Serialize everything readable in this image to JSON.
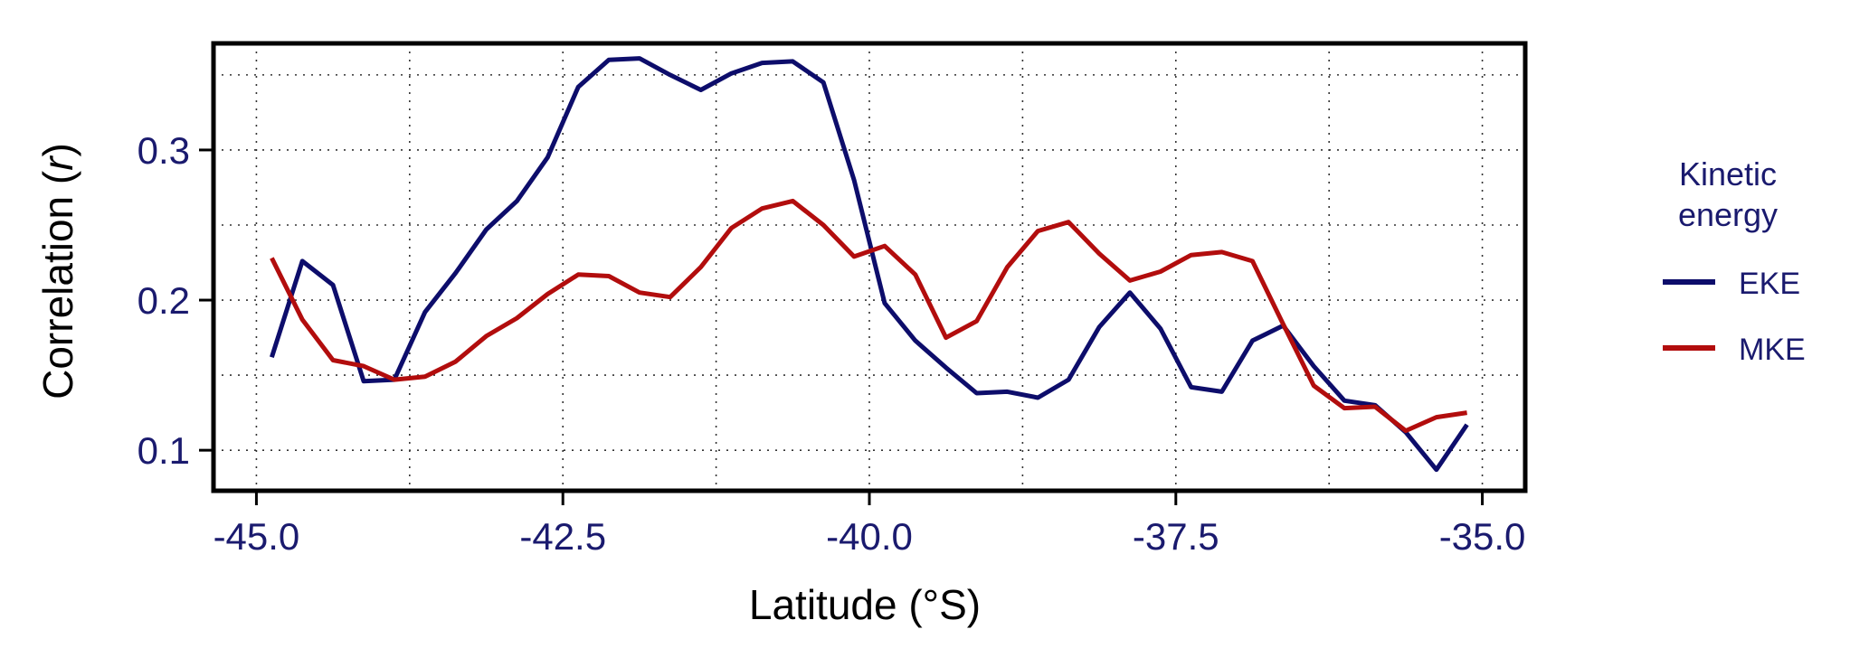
{
  "chart_data": {
    "type": "line",
    "xlabel": "Latitude (°S)",
    "ylabel_main": "Correlation (",
    "ylabel_italic": "r",
    "ylabel_close": ")",
    "xlim": [
      -45.35,
      -34.65
    ],
    "ylim": [
      0.073,
      0.371
    ],
    "x_ticks": [
      -45.0,
      -42.5,
      -40.0,
      -37.5,
      -35.0
    ],
    "x_tick_labels": [
      "-45.0",
      "-42.5",
      "-40.0",
      "-37.5",
      "-35.0"
    ],
    "x_minor_grid": [
      -43.75,
      -41.25,
      -38.75,
      -36.25
    ],
    "y_ticks": [
      0.1,
      0.2,
      0.3
    ],
    "y_tick_labels": [
      "0.1",
      "0.2",
      "0.3"
    ],
    "y_minor_grid": [
      0.15,
      0.25,
      0.35
    ],
    "grid": true,
    "legend_position": "right",
    "legend_title_lines": [
      "Kinetic",
      "energy"
    ],
    "series": [
      {
        "name": "EKE",
        "color": "#0d0d6b",
        "x": [
          -44.875,
          -44.625,
          -44.375,
          -44.125,
          -43.875,
          -43.625,
          -43.375,
          -43.125,
          -42.875,
          -42.625,
          -42.375,
          -42.125,
          -41.875,
          -41.625,
          -41.375,
          -41.125,
          -40.875,
          -40.625,
          -40.375,
          -40.125,
          -39.875,
          -39.625,
          -39.375,
          -39.125,
          -38.875,
          -38.625,
          -38.375,
          -38.125,
          -37.875,
          -37.625,
          -37.375,
          -37.125,
          -36.875,
          -36.625,
          -36.375,
          -36.125,
          -35.875,
          -35.625,
          -35.375,
          -35.125
        ],
        "values": [
          0.162,
          0.226,
          0.21,
          0.146,
          0.147,
          0.192,
          0.218,
          0.247,
          0.266,
          0.295,
          0.342,
          0.36,
          0.361,
          0.35,
          0.34,
          0.351,
          0.358,
          0.359,
          0.345,
          0.28,
          0.198,
          0.173,
          0.155,
          0.138,
          0.139,
          0.135,
          0.147,
          0.182,
          0.205,
          0.181,
          0.142,
          0.139,
          0.173,
          0.183,
          0.156,
          0.133,
          0.13,
          0.112,
          0.087,
          0.117
        ]
      },
      {
        "name": "MKE",
        "color": "#b20d0d",
        "x": [
          -44.875,
          -44.625,
          -44.375,
          -44.125,
          -43.875,
          -43.625,
          -43.375,
          -43.125,
          -42.875,
          -42.625,
          -42.375,
          -42.125,
          -41.875,
          -41.625,
          -41.375,
          -41.125,
          -40.875,
          -40.625,
          -40.375,
          -40.125,
          -39.875,
          -39.625,
          -39.375,
          -39.125,
          -38.875,
          -38.625,
          -38.375,
          -38.125,
          -37.875,
          -37.625,
          -37.375,
          -37.125,
          -36.875,
          -36.625,
          -36.375,
          -36.125,
          -35.875,
          -35.625,
          -35.375,
          -35.125
        ],
        "values": [
          0.228,
          0.187,
          0.16,
          0.156,
          0.147,
          0.149,
          0.159,
          0.176,
          0.188,
          0.204,
          0.217,
          0.216,
          0.205,
          0.202,
          0.222,
          0.248,
          0.261,
          0.266,
          0.25,
          0.229,
          0.236,
          0.217,
          0.175,
          0.186,
          0.222,
          0.246,
          0.252,
          0.231,
          0.213,
          0.219,
          0.23,
          0.232,
          0.226,
          0.184,
          0.143,
          0.128,
          0.129,
          0.113,
          0.122,
          0.125
        ]
      }
    ]
  }
}
